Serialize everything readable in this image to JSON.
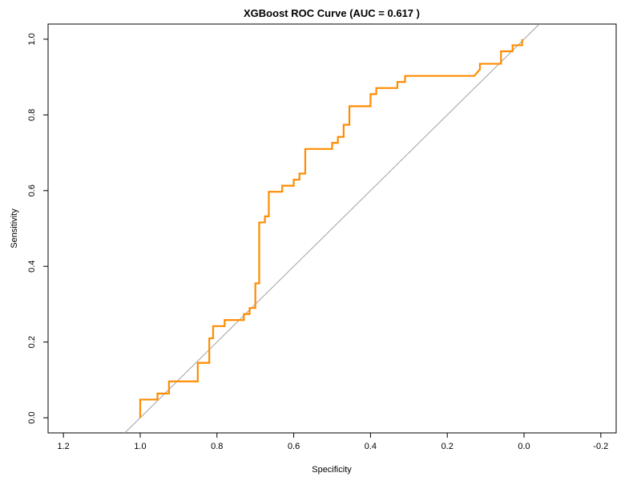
{
  "chart_data": {
    "type": "line",
    "title": "XGBoost ROC Curve (AUC = 0.617 )",
    "xlabel": "Specificity",
    "ylabel": "Sensitivity",
    "x_reversed": true,
    "xlim": [
      1.24,
      -0.24
    ],
    "ylim": [
      -0.04,
      1.04
    ],
    "x_ticks": [
      1.2,
      1.0,
      0.8,
      0.6,
      0.4,
      0.2,
      0.0,
      -0.2
    ],
    "x_tick_labels": [
      "1.2",
      "1.0",
      "0.8",
      "0.6",
      "0.4",
      "0.2",
      "0.0",
      "-0.2"
    ],
    "y_ticks": [
      0.0,
      0.2,
      0.4,
      0.6,
      0.8,
      1.0
    ],
    "y_tick_labels": [
      "0.0",
      "0.2",
      "0.4",
      "0.6",
      "0.8",
      "1.0"
    ],
    "grid": false,
    "colors": {
      "roc_line": "#FF8C00",
      "reference_line": "#A0A0A0",
      "frame": "#000000"
    },
    "reference_line": {
      "description": "chance diagonal",
      "points": [
        [
          1.0,
          0.0
        ],
        [
          0.0,
          1.0
        ]
      ]
    },
    "series": [
      {
        "specificity": [
          1.0,
          1.0,
          0.955,
          0.955,
          0.925,
          0.925,
          0.85,
          0.85,
          0.82,
          0.82,
          0.81,
          0.81,
          0.78,
          0.78,
          0.73,
          0.73,
          0.715,
          0.715,
          0.7,
          0.7,
          0.69,
          0.69,
          0.675,
          0.675,
          0.665,
          0.665,
          0.63,
          0.63,
          0.6,
          0.6,
          0.585,
          0.585,
          0.57,
          0.57,
          0.5,
          0.5,
          0.485,
          0.485,
          0.47,
          0.47,
          0.455,
          0.455,
          0.4,
          0.4,
          0.385,
          0.385,
          0.33,
          0.33,
          0.31,
          0.31,
          0.13,
          0.115,
          0.115,
          0.06,
          0.06,
          0.03,
          0.03,
          0.005,
          0.005
        ],
        "sensitivity": [
          0.0,
          0.048,
          0.048,
          0.064,
          0.064,
          0.096,
          0.096,
          0.145,
          0.145,
          0.21,
          0.21,
          0.242,
          0.242,
          0.258,
          0.258,
          0.274,
          0.274,
          0.29,
          0.29,
          0.355,
          0.355,
          0.516,
          0.516,
          0.532,
          0.532,
          0.597,
          0.597,
          0.613,
          0.613,
          0.629,
          0.629,
          0.645,
          0.645,
          0.71,
          0.71,
          0.726,
          0.726,
          0.742,
          0.742,
          0.774,
          0.774,
          0.823,
          0.823,
          0.855,
          0.855,
          0.871,
          0.871,
          0.887,
          0.887,
          0.903,
          0.903,
          0.92,
          0.935,
          0.935,
          0.968,
          0.968,
          0.984,
          0.984,
          1.0
        ]
      }
    ]
  }
}
